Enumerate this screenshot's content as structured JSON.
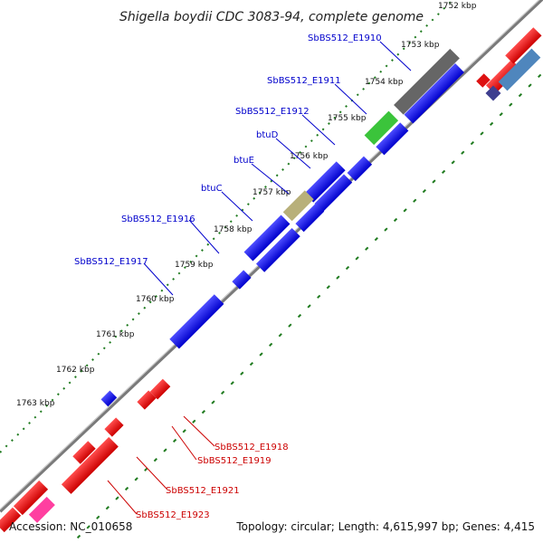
{
  "title": "Shigella boydii CDC 3083-94, complete genome",
  "footer": {
    "accession": "Accession: NC_010658",
    "summary": "Topology: circular; Length: 4,615,997 bp; Genes: 4,415"
  },
  "colors": {
    "backbone": "#777777",
    "tick": "#1e7a1e",
    "label_blue": "#0000cc",
    "label_red": "#cc0000"
  },
  "ticks": [
    {
      "label": "1752 kbp"
    },
    {
      "label": "1753 kbp"
    },
    {
      "label": "1754 kbp"
    },
    {
      "label": "1755 kbp"
    },
    {
      "label": "1756 kbp"
    },
    {
      "label": "1757 kbp"
    },
    {
      "label": "1758 kbp"
    },
    {
      "label": "1759 kbp"
    },
    {
      "label": "1760 kbp"
    },
    {
      "label": "1761 kbp"
    },
    {
      "label": "1762 kbp"
    },
    {
      "label": "1763 kbp"
    }
  ],
  "gene_labels": [
    {
      "text": "SbBS512_E1910",
      "color": "#0000cc"
    },
    {
      "text": "SbBS512_E1911",
      "color": "#0000cc"
    },
    {
      "text": "SbBS512_E1912",
      "color": "#0000cc"
    },
    {
      "text": "btuD",
      "color": "#0000cc"
    },
    {
      "text": "btuE",
      "color": "#0000cc"
    },
    {
      "text": "btuC",
      "color": "#0000cc"
    },
    {
      "text": "SbBS512_E1916",
      "color": "#0000cc"
    },
    {
      "text": "SbBS512_E1917",
      "color": "#0000cc"
    },
    {
      "text": "SbBS512_E1918",
      "color": "#cc0000"
    },
    {
      "text": "SbBS512_E1919",
      "color": "#cc0000"
    },
    {
      "text": "SbBS512_E1921",
      "color": "#cc0000"
    },
    {
      "text": "SbBS512_E1923",
      "color": "#cc0000"
    }
  ]
}
